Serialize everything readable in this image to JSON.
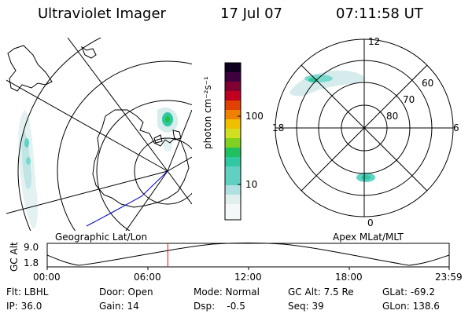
{
  "header": {
    "instrument": "Ultraviolet Imager",
    "date": "17 Jul 07",
    "time": "07:11:58 UT"
  },
  "left_panel": {
    "label": "Geographic Lat/Lon"
  },
  "right_panel": {
    "label": "Apex MLat/MLT",
    "mlt_labels": {
      "top": "12",
      "left": "18",
      "right": "6",
      "bottom": "0"
    },
    "lat_labels": [
      "60",
      "70",
      "80"
    ]
  },
  "colorbar": {
    "unit": "photon cm⁻²s⁻¹",
    "ticks": [
      "100",
      "10"
    ],
    "colors": [
      "#e0eeee",
      "#b0e0e0",
      "#60d0c0",
      "#30c8a0",
      "#20c060",
      "#80d020",
      "#d0e020",
      "#f0c000",
      "#f08000",
      "#e04000",
      "#c00020",
      "#800030",
      "#400040",
      "#100020"
    ]
  },
  "altitude_strip": {
    "ylabel": "GC Alt",
    "y_ticks": [
      "9.0",
      "1.8"
    ],
    "x_ticks": [
      "00:00",
      "06:00",
      "12:00",
      "18:00",
      "23:59"
    ],
    "current_time_marker_hours": 7.2
  },
  "footer": {
    "flt": "Flt: LBHL",
    "ip": "IP: 36.0",
    "door": "Door: Open",
    "gain": "Gain: 14",
    "mode": "Mode: Normal",
    "dsp": "Dsp:    -0.5",
    "gcalt": "GC Alt: 7.5 Re",
    "seq": "Seq: 39",
    "glat": "GLat: -69.2",
    "glon": "GLon: 138.6"
  },
  "colors": {
    "marker": "#ff0000",
    "track": "#0000cc"
  }
}
